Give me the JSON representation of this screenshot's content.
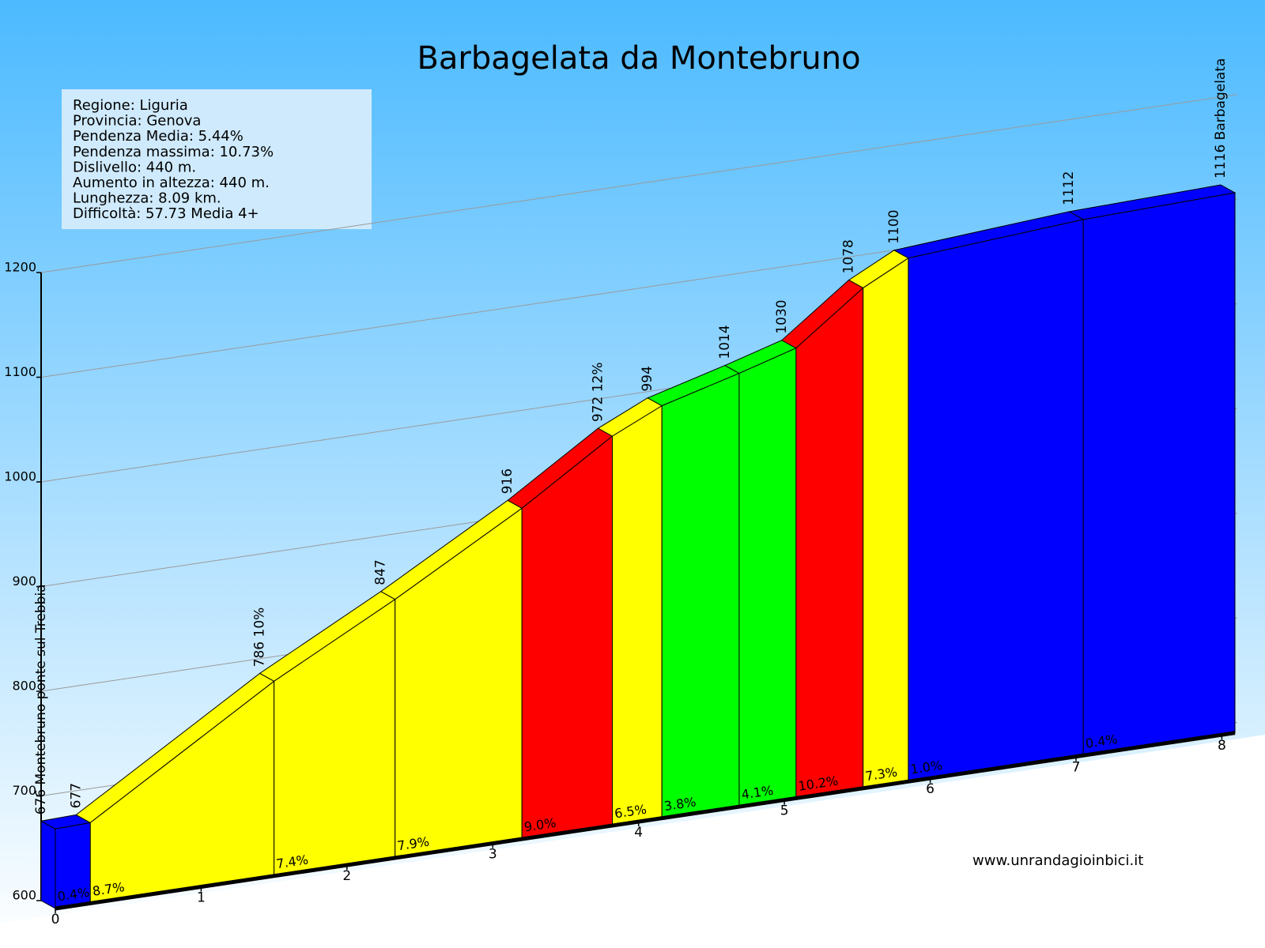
{
  "chart_data": {
    "type": "profile",
    "title": "Barbagelata da Montebruno",
    "info": [
      "Regione: Liguria",
      "Provincia: Genova",
      "Pendenza Media: 5.44%",
      "Pendenza massima: 10.73%",
      "Dislivello:   440 m.",
      "Aumento in altezza:   440 m.",
      "Lunghezza:  8.09 km.",
      "Difficoltà: 57.73 Media 4+"
    ],
    "source": "www.unrandagioinbici.it",
    "x": [
      0,
      0.24,
      1.5,
      2.33,
      3.2,
      3.82,
      4.16,
      4.69,
      5.08,
      5.54,
      5.85,
      7.05,
      8.09
    ],
    "values": [
      676,
      677,
      786,
      847,
      916,
      972,
      994,
      1014,
      1030,
      1078,
      1100,
      1112,
      1116
    ],
    "value_labels": [
      "676 Montebruno ponte sul Trebbia",
      "677",
      "786 10%",
      "847",
      "916",
      "972 12%",
      "994",
      "1014",
      "1030",
      "1078",
      "1100",
      "1112",
      "1116 Barbagelata"
    ],
    "segment_grades": [
      0.4,
      8.7,
      7.4,
      7.9,
      9.0,
      6.5,
      3.8,
      4.1,
      10.2,
      7.3,
      1.0,
      0.4
    ],
    "segment_grade_labels": [
      "0.4%",
      "8.7%",
      "7.4%",
      "7.9%",
      "9.0%",
      "6.5%",
      "3.8%",
      "4.1%",
      "10.2%",
      "7.3%",
      "1.0%",
      "0.4%"
    ],
    "segment_colors": [
      "#0000ff",
      "#ffff00",
      "#ffff00",
      "#ffff00",
      "#ff0000",
      "#ffff00",
      "#00ff00",
      "#00ff00",
      "#ff0000",
      "#ffff00",
      "#0000ff",
      "#0000ff"
    ],
    "xlim": [
      0,
      8.09
    ],
    "xticks": [
      0,
      1,
      2,
      3,
      4,
      5,
      6,
      7,
      8
    ],
    "ylim": [
      600,
      1200
    ],
    "yticks": [
      600,
      700,
      800,
      900,
      1000,
      1100,
      1200
    ],
    "grid": true
  }
}
